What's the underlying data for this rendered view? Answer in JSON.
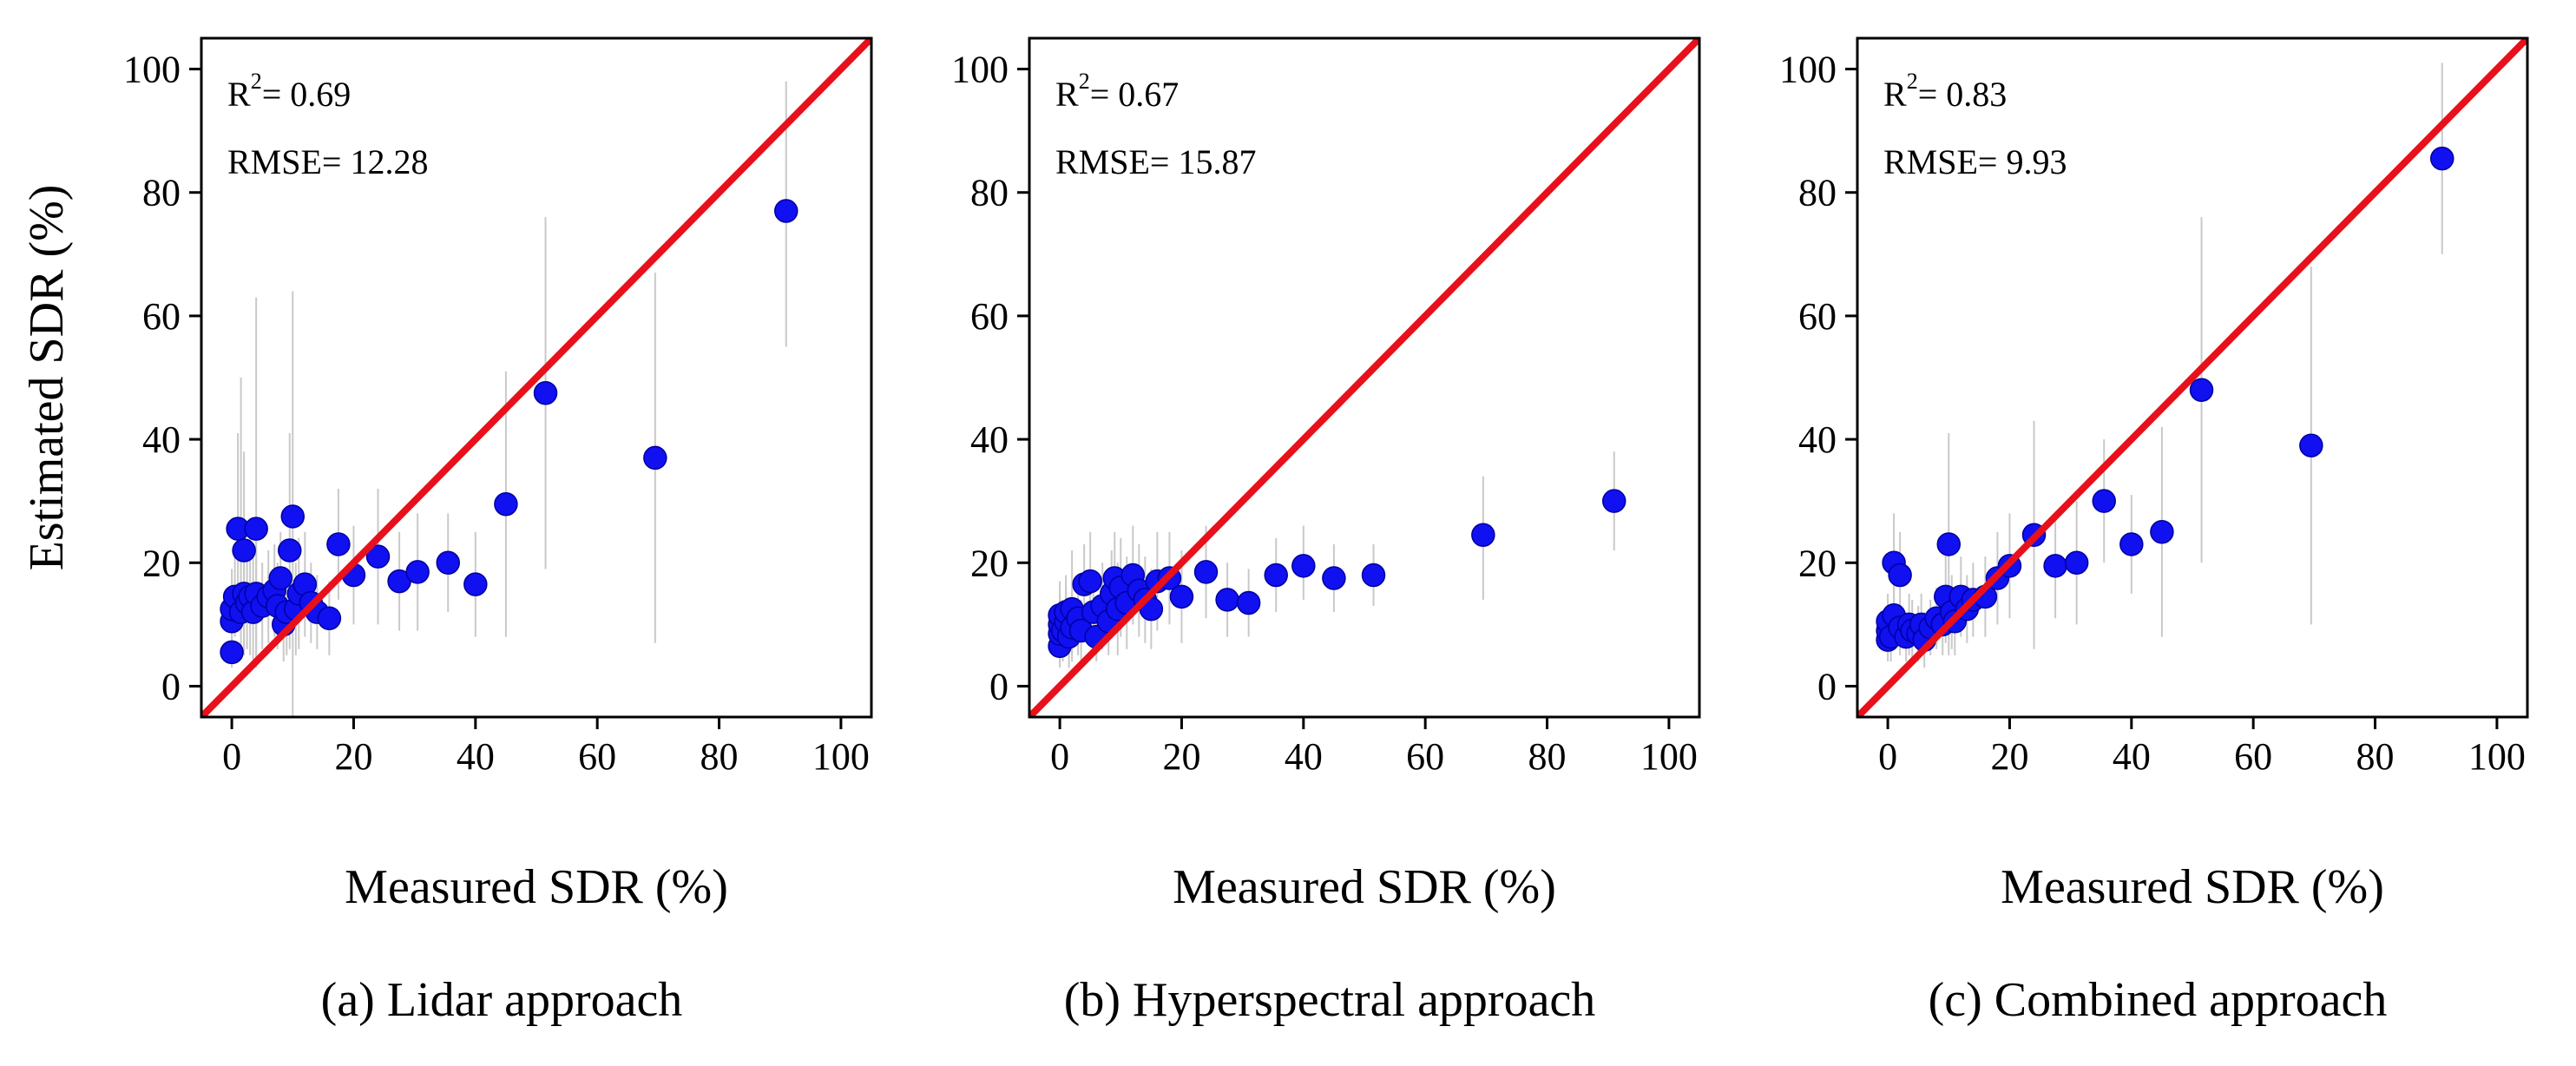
{
  "colors": {
    "point": "#1010f0",
    "line": "#e8101a",
    "errbar": "#c9c9c9",
    "axis": "#000000"
  },
  "chart_data": [
    {
      "type": "scatter",
      "id": "lidar",
      "caption": "(a) Lidar approach",
      "xlabel": "Measured SDR (%)",
      "ylabel": "Estimated SDR (%)",
      "xlim": [
        -5,
        105
      ],
      "ylim": [
        -5,
        105
      ],
      "xticks": [
        "0",
        "20",
        "40",
        "60",
        "80",
        "100"
      ],
      "yticks": [
        "0",
        "20",
        "40",
        "60",
        "80",
        "100"
      ],
      "r2_label": "R",
      "r2_exp": "2",
      "r2_value": "= 0.69",
      "rmse_text": "RMSE= 12.28",
      "reference_line": "1:1",
      "points": [
        {
          "x": 0,
          "y": 5.5,
          "lo": 3,
          "hi": 8
        },
        {
          "x": 0,
          "y": 10.5,
          "lo": 5,
          "hi": 16
        },
        {
          "x": 0,
          "y": 12.5,
          "lo": 6,
          "hi": 19
        },
        {
          "x": 0.5,
          "y": 14.5,
          "lo": 8,
          "hi": 21
        },
        {
          "x": 1,
          "y": 25.5,
          "lo": 10,
          "hi": 41
        },
        {
          "x": 1.5,
          "y": 12,
          "lo": 5,
          "hi": 50
        },
        {
          "x": 2,
          "y": 22,
          "lo": 6,
          "hi": 38
        },
        {
          "x": 2,
          "y": 15,
          "lo": 5,
          "hi": 25
        },
        {
          "x": 2.5,
          "y": 13.5,
          "lo": 6,
          "hi": 21
        },
        {
          "x": 3,
          "y": 14.5,
          "lo": 5,
          "hi": 24
        },
        {
          "x": 3.5,
          "y": 12,
          "lo": 3,
          "hi": 21
        },
        {
          "x": 4,
          "y": 25.5,
          "lo": 3,
          "hi": 63
        },
        {
          "x": 4,
          "y": 15,
          "lo": 5,
          "hi": 25
        },
        {
          "x": 5,
          "y": 13,
          "lo": 6,
          "hi": 20
        },
        {
          "x": 6,
          "y": 14.5,
          "lo": 7,
          "hi": 22
        },
        {
          "x": 7,
          "y": 15.5,
          "lo": 8,
          "hi": 23
        },
        {
          "x": 7.5,
          "y": 13,
          "lo": 6,
          "hi": 20
        },
        {
          "x": 8,
          "y": 17.5,
          "lo": 10,
          "hi": 25
        },
        {
          "x": 8.5,
          "y": 10,
          "lo": 4,
          "hi": 16
        },
        {
          "x": 9,
          "y": 12,
          "lo": 5,
          "hi": 19
        },
        {
          "x": 9.5,
          "y": 22,
          "lo": 6,
          "hi": 41
        },
        {
          "x": 10,
          "y": 27.5,
          "lo": -10,
          "hi": 64
        },
        {
          "x": 10.5,
          "y": 12.5,
          "lo": 5,
          "hi": 20
        },
        {
          "x": 11,
          "y": 15,
          "lo": 6,
          "hi": 24
        },
        {
          "x": 12,
          "y": 16.5,
          "lo": 8,
          "hi": 25
        },
        {
          "x": 13,
          "y": 13.5,
          "lo": 7,
          "hi": 20
        },
        {
          "x": 14,
          "y": 12,
          "lo": 6,
          "hi": 18
        },
        {
          "x": 16,
          "y": 11,
          "lo": 5,
          "hi": 17
        },
        {
          "x": 17.5,
          "y": 23,
          "lo": 14,
          "hi": 32
        },
        {
          "x": 20,
          "y": 18,
          "lo": 10,
          "hi": 26
        },
        {
          "x": 24,
          "y": 21,
          "lo": 10,
          "hi": 32
        },
        {
          "x": 27.5,
          "y": 17,
          "lo": 9,
          "hi": 25
        },
        {
          "x": 30.5,
          "y": 18.5,
          "lo": 9,
          "hi": 28
        },
        {
          "x": 35.5,
          "y": 20,
          "lo": 12,
          "hi": 28
        },
        {
          "x": 40,
          "y": 16.5,
          "lo": 8,
          "hi": 25
        },
        {
          "x": 45,
          "y": 29.5,
          "lo": 8,
          "hi": 51
        },
        {
          "x": 51.5,
          "y": 47.5,
          "lo": 19,
          "hi": 76
        },
        {
          "x": 69.5,
          "y": 37,
          "lo": 7,
          "hi": 67
        },
        {
          "x": 91,
          "y": 77,
          "lo": 55,
          "hi": 98
        }
      ]
    },
    {
      "type": "scatter",
      "id": "hyperspectral",
      "caption": "(b) Hyperspectral approach",
      "xlabel": "Measured SDR (%)",
      "ylabel": "",
      "xlim": [
        -5,
        105
      ],
      "ylim": [
        -5,
        105
      ],
      "xticks": [
        "0",
        "20",
        "40",
        "60",
        "80",
        "100"
      ],
      "yticks": [
        "0",
        "20",
        "40",
        "60",
        "80",
        "100"
      ],
      "r2_label": "R",
      "r2_exp": "2",
      "r2_value": "= 0.67",
      "rmse_text": "RMSE= 15.87",
      "reference_line": "1:1",
      "points": [
        {
          "x": 0,
          "y": 6.5,
          "lo": 3,
          "hi": 10
        },
        {
          "x": 0,
          "y": 8.5,
          "lo": 4,
          "hi": 13
        },
        {
          "x": 0,
          "y": 10,
          "lo": 5,
          "hi": 15
        },
        {
          "x": 0,
          "y": 11.5,
          "lo": 6,
          "hi": 17
        },
        {
          "x": 0.5,
          "y": 9,
          "lo": 4,
          "hi": 14
        },
        {
          "x": 1,
          "y": 10.5,
          "lo": 5,
          "hi": 16
        },
        {
          "x": 1,
          "y": 12,
          "lo": 6,
          "hi": 18
        },
        {
          "x": 1.5,
          "y": 8,
          "lo": 3,
          "hi": 13
        },
        {
          "x": 2,
          "y": 12.5,
          "lo": 5,
          "hi": 22
        },
        {
          "x": 2,
          "y": 9.5,
          "lo": 4,
          "hi": 15
        },
        {
          "x": 3,
          "y": 11,
          "lo": 5,
          "hi": 17
        },
        {
          "x": 3.5,
          "y": 9,
          "lo": 4,
          "hi": 14
        },
        {
          "x": 4,
          "y": 16.5,
          "lo": 10,
          "hi": 23
        },
        {
          "x": 5,
          "y": 17,
          "lo": 10,
          "hi": 25
        },
        {
          "x": 5.5,
          "y": 12,
          "lo": 6,
          "hi": 18
        },
        {
          "x": 6,
          "y": 8,
          "lo": 4,
          "hi": 13
        },
        {
          "x": 7,
          "y": 13,
          "lo": 6,
          "hi": 20
        },
        {
          "x": 8,
          "y": 10.5,
          "lo": 5,
          "hi": 17
        },
        {
          "x": 8.5,
          "y": 15,
          "lo": 8,
          "hi": 22
        },
        {
          "x": 9,
          "y": 17.5,
          "lo": 10,
          "hi": 25
        },
        {
          "x": 9.5,
          "y": 12.5,
          "lo": 5,
          "hi": 20
        },
        {
          "x": 10,
          "y": 16,
          "lo": 8,
          "hi": 24
        },
        {
          "x": 11,
          "y": 13.5,
          "lo": 6,
          "hi": 21
        },
        {
          "x": 12,
          "y": 18,
          "lo": 10,
          "hi": 26
        },
        {
          "x": 13,
          "y": 15.5,
          "lo": 8,
          "hi": 23
        },
        {
          "x": 14,
          "y": 14,
          "lo": 7,
          "hi": 21
        },
        {
          "x": 15,
          "y": 12.5,
          "lo": 6,
          "hi": 19
        },
        {
          "x": 16,
          "y": 17,
          "lo": 9,
          "hi": 25
        },
        {
          "x": 18,
          "y": 17.5,
          "lo": 10,
          "hi": 25
        },
        {
          "x": 20,
          "y": 14.5,
          "lo": 7,
          "hi": 22
        },
        {
          "x": 24,
          "y": 18.5,
          "lo": 11,
          "hi": 26
        },
        {
          "x": 27.5,
          "y": 14,
          "lo": 8,
          "hi": 20
        },
        {
          "x": 31,
          "y": 13.5,
          "lo": 8,
          "hi": 19
        },
        {
          "x": 35.5,
          "y": 18,
          "lo": 12,
          "hi": 24
        },
        {
          "x": 40,
          "y": 19.5,
          "lo": 14,
          "hi": 26
        },
        {
          "x": 45,
          "y": 17.5,
          "lo": 12,
          "hi": 23
        },
        {
          "x": 51.5,
          "y": 18,
          "lo": 13,
          "hi": 23
        },
        {
          "x": 69.5,
          "y": 24.5,
          "lo": 14,
          "hi": 34
        },
        {
          "x": 91,
          "y": 30,
          "lo": 22,
          "hi": 38
        }
      ]
    },
    {
      "type": "scatter",
      "id": "combined",
      "caption": "(c) Combined approach",
      "xlabel": "Measured SDR (%)",
      "ylabel": "",
      "xlim": [
        -5,
        105
      ],
      "ylim": [
        -5,
        105
      ],
      "xticks": [
        "0",
        "20",
        "40",
        "60",
        "80",
        "100"
      ],
      "yticks": [
        "0",
        "20",
        "40",
        "60",
        "80",
        "100"
      ],
      "r2_label": "R",
      "r2_exp": "2",
      "r2_value": "= 0.83",
      "rmse_text": "RMSE= 9.93",
      "reference_line": "1:1",
      "points": [
        {
          "x": 0,
          "y": 7.5,
          "lo": 4,
          "hi": 11
        },
        {
          "x": 0,
          "y": 9,
          "lo": 5,
          "hi": 13
        },
        {
          "x": 0,
          "y": 10.5,
          "lo": 6,
          "hi": 15
        },
        {
          "x": 0.5,
          "y": 8,
          "lo": 4,
          "hi": 12
        },
        {
          "x": 1,
          "y": 11.5,
          "lo": 6,
          "hi": 17
        },
        {
          "x": 1,
          "y": 20,
          "lo": 12,
          "hi": 28
        },
        {
          "x": 2,
          "y": 18,
          "lo": 11,
          "hi": 25
        },
        {
          "x": 2,
          "y": 9.5,
          "lo": 5,
          "hi": 14
        },
        {
          "x": 3,
          "y": 8,
          "lo": 4,
          "hi": 12
        },
        {
          "x": 3.5,
          "y": 10,
          "lo": 5,
          "hi": 15
        },
        {
          "x": 4,
          "y": 9,
          "lo": 4,
          "hi": 14
        },
        {
          "x": 5,
          "y": 8.5,
          "lo": 4,
          "hi": 13
        },
        {
          "x": 5.5,
          "y": 10,
          "lo": 5,
          "hi": 15
        },
        {
          "x": 6,
          "y": 7.5,
          "lo": 3,
          "hi": 12
        },
        {
          "x": 7,
          "y": 9.5,
          "lo": 5,
          "hi": 14
        },
        {
          "x": 8,
          "y": 11,
          "lo": 6,
          "hi": 16
        },
        {
          "x": 9,
          "y": 10,
          "lo": 5,
          "hi": 15
        },
        {
          "x": 9.5,
          "y": 14.5,
          "lo": 7,
          "hi": 22
        },
        {
          "x": 10,
          "y": 23,
          "lo": 5,
          "hi": 41
        },
        {
          "x": 10.5,
          "y": 12,
          "lo": 6,
          "hi": 18
        },
        {
          "x": 11,
          "y": 10.5,
          "lo": 5,
          "hi": 16
        },
        {
          "x": 12,
          "y": 14.5,
          "lo": 8,
          "hi": 21
        },
        {
          "x": 13,
          "y": 12.5,
          "lo": 7,
          "hi": 18
        },
        {
          "x": 14,
          "y": 14,
          "lo": 8,
          "hi": 20
        },
        {
          "x": 16,
          "y": 14.5,
          "lo": 8,
          "hi": 21
        },
        {
          "x": 18,
          "y": 17.5,
          "lo": 10,
          "hi": 25
        },
        {
          "x": 20,
          "y": 19.5,
          "lo": 11,
          "hi": 28
        },
        {
          "x": 24,
          "y": 24.5,
          "lo": 6,
          "hi": 43
        },
        {
          "x": 27.5,
          "y": 19.5,
          "lo": 11,
          "hi": 28
        },
        {
          "x": 31,
          "y": 20,
          "lo": 10,
          "hi": 30
        },
        {
          "x": 35.5,
          "y": 30,
          "lo": 20,
          "hi": 40
        },
        {
          "x": 40,
          "y": 23,
          "lo": 15,
          "hi": 31
        },
        {
          "x": 45,
          "y": 25,
          "lo": 8,
          "hi": 42
        },
        {
          "x": 51.5,
          "y": 48,
          "lo": 20,
          "hi": 76
        },
        {
          "x": 69.5,
          "y": 39,
          "lo": 10,
          "hi": 68
        },
        {
          "x": 91,
          "y": 85.5,
          "lo": 70,
          "hi": 101
        }
      ]
    }
  ]
}
